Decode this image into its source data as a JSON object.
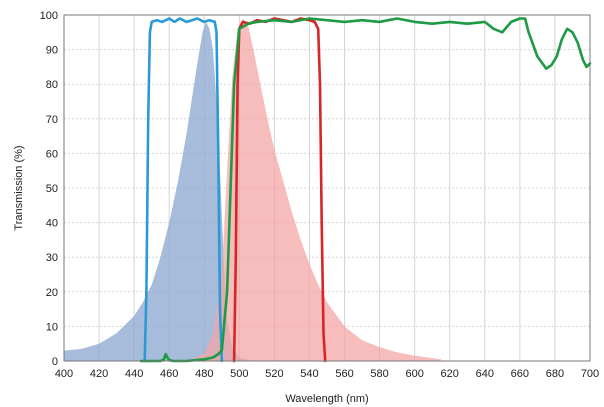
{
  "chart_data": {
    "type": "area",
    "title": "",
    "xlabel": "Wavelength (nm)",
    "ylabel": "Transmission (%)",
    "xlim": [
      400,
      700
    ],
    "ylim": [
      0,
      100
    ],
    "xticks": [
      400,
      420,
      440,
      460,
      480,
      500,
      520,
      540,
      560,
      580,
      600,
      620,
      640,
      660,
      680,
      700
    ],
    "yticks": [
      0,
      10,
      20,
      30,
      40,
      50,
      60,
      70,
      80,
      90,
      100
    ],
    "grid": true,
    "legend": "none",
    "series": [
      {
        "kind": "area",
        "color": "#8aa6cf",
        "x": [
          400,
          410,
          420,
          430,
          440,
          445,
          450,
          455,
          460,
          465,
          470,
          473,
          476,
          479,
          481,
          483,
          485,
          487,
          489,
          491,
          493,
          496,
          500,
          505,
          510
        ],
        "y": [
          3,
          3.5,
          5,
          8,
          13,
          17,
          22,
          30,
          40,
          52,
          66,
          76,
          86,
          95,
          98,
          96,
          90,
          75,
          55,
          30,
          12,
          4,
          1,
          0.3,
          0
        ]
      },
      {
        "kind": "area",
        "color": "#f4a5a5",
        "x": [
          470,
          480,
          485,
          490,
          493,
          496,
          499,
          502,
          505,
          508,
          512,
          516,
          520,
          525,
          530,
          535,
          540,
          545,
          550,
          560,
          570,
          580,
          590,
          600,
          615
        ],
        "y": [
          0,
          2,
          8,
          25,
          55,
          82,
          96,
          99,
          97,
          90,
          80,
          70,
          61,
          52,
          43,
          35,
          28,
          22,
          17,
          10,
          6,
          4,
          2.5,
          1.5,
          0.5
        ]
      },
      {
        "kind": "line",
        "color": "#2a9ad6",
        "x": [
          446,
          447,
          448,
          449,
          450,
          453,
          456,
          460,
          463,
          466,
          470,
          473,
          476,
          480,
          483,
          486,
          487,
          488,
          489,
          490
        ],
        "y": [
          0,
          20,
          70,
          95,
          98,
          98.5,
          98,
          99,
          98,
          99,
          98,
          98.5,
          99,
          98,
          98.5,
          98,
          95,
          60,
          15,
          0
        ]
      },
      {
        "kind": "line",
        "color": "#d62728",
        "x": [
          497,
          498,
          499,
          500,
          502,
          506,
          510,
          515,
          520,
          525,
          530,
          535,
          540,
          543,
          545,
          546,
          547,
          548,
          549
        ],
        "y": [
          0,
          30,
          80,
          96,
          98,
          97.5,
          98.5,
          98,
          99,
          98.5,
          98,
          99,
          98.5,
          98,
          96,
          80,
          40,
          8,
          0
        ]
      },
      {
        "kind": "line",
        "color": "#1e9a44",
        "x": [
          444,
          450,
          455,
          457,
          458,
          459,
          460,
          462,
          470,
          480,
          485,
          488,
          490,
          493,
          495,
          497,
          500,
          505,
          510,
          520,
          530,
          540,
          550,
          560,
          570,
          580,
          590,
          600,
          610,
          620,
          630,
          640,
          645,
          650,
          655,
          660,
          663,
          665,
          670,
          675,
          678,
          681,
          684,
          687,
          690,
          693,
          696,
          698,
          700
        ],
        "y": [
          0,
          0,
          0,
          0.5,
          2,
          1,
          0.3,
          0,
          0,
          0.5,
          1,
          2,
          3,
          20,
          50,
          80,
          96,
          97.5,
          98,
          98.5,
          98,
          99,
          98.5,
          98,
          98.5,
          98,
          99,
          98,
          97.5,
          98,
          97.5,
          98,
          96,
          95,
          98,
          99,
          99,
          95,
          88,
          84.5,
          85.5,
          88,
          93,
          96,
          95,
          92,
          87,
          85,
          86
        ]
      }
    ]
  }
}
